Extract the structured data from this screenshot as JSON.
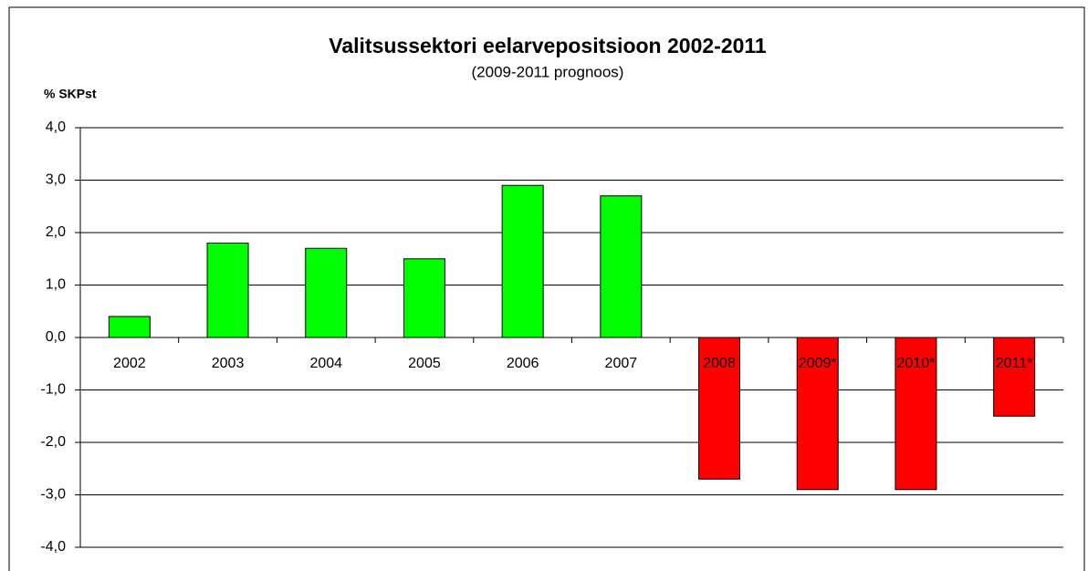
{
  "chart_data": {
    "type": "bar",
    "title": "Valitsussektori eelarvepositsioon 2002-2011",
    "subtitle": "(2009-2011 prognoos)",
    "y_label": "% SKPst",
    "categories": [
      "2002",
      "2003",
      "2004",
      "2005",
      "2006",
      "2007",
      "2008",
      "2009*",
      "2010*",
      "2011*"
    ],
    "values": [
      0.4,
      1.8,
      1.7,
      1.5,
      2.9,
      2.7,
      -2.7,
      -2.9,
      -2.9,
      -1.5
    ],
    "colors": [
      "#00ff00",
      "#00ff00",
      "#00ff00",
      "#00ff00",
      "#00ff00",
      "#00ff00",
      "#ff0000",
      "#ff0000",
      "#ff0000",
      "#ff0000"
    ],
    "ylim": [
      -4,
      4
    ],
    "yticks": [
      {
        "value": 4,
        "label": "4,0"
      },
      {
        "value": 3,
        "label": "3,0"
      },
      {
        "value": 2,
        "label": "2,0"
      },
      {
        "value": 1,
        "label": "1,0"
      },
      {
        "value": 0,
        "label": "0,0"
      },
      {
        "value": -1,
        "label": "-1,0"
      },
      {
        "value": -2,
        "label": "-2,0"
      },
      {
        "value": -3,
        "label": "-3,0"
      },
      {
        "value": -4,
        "label": "-4,0"
      }
    ],
    "grid": true
  }
}
